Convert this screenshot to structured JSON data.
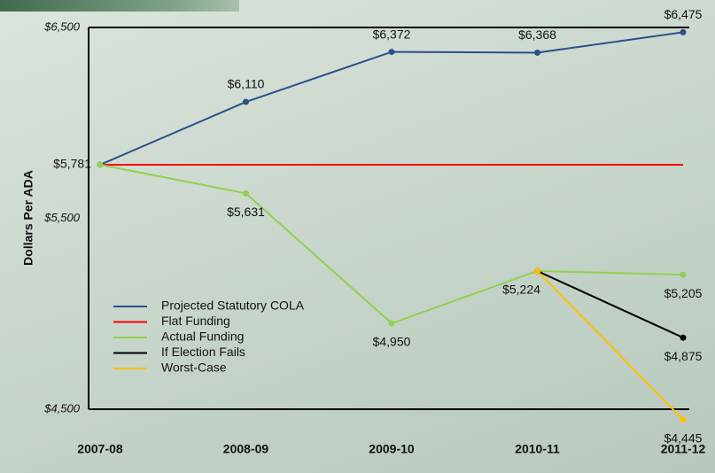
{
  "chart_data": {
    "type": "line",
    "y_label": "Dollars Per ADA",
    "categories": [
      "2007-08",
      "2008-09",
      "2009-10",
      "2010-11",
      "2011-12"
    ],
    "ylim": [
      4500,
      6500
    ],
    "yticks": [
      {
        "value": 4500,
        "label": "$4,500"
      },
      {
        "value": 5500,
        "label": "$5,500"
      },
      {
        "value": 6500,
        "label": "$6,500"
      }
    ],
    "grid": false,
    "legend": "lower left",
    "series": [
      {
        "name": "Projected Statutory COLA",
        "color": "#2b4f8c",
        "values": [
          5781,
          6110,
          6372,
          6368,
          6475
        ],
        "value_labels": [
          null,
          "$6,110",
          "$6,372",
          "$6,368",
          "$6,475"
        ]
      },
      {
        "name": "Flat Funding",
        "color": "#ff0000",
        "marker": false,
        "values": [
          5781,
          5781,
          5781,
          5781,
          5781
        ],
        "value_labels": [
          "$5,781",
          null,
          null,
          null,
          null
        ]
      },
      {
        "name": "Actual Funding",
        "color": "#92d050",
        "values": [
          5781,
          5631,
          4950,
          5224,
          5205
        ],
        "value_labels": [
          null,
          "$5,631",
          "$4,950",
          "$5,224",
          "$5,205"
        ]
      },
      {
        "name": "If Election Fails",
        "color": "#000000",
        "values": [
          null,
          null,
          null,
          5224,
          4875
        ],
        "value_labels": [
          null,
          null,
          null,
          null,
          "$4,875"
        ]
      },
      {
        "name": "Worst-Case",
        "color": "#ffc000",
        "values": [
          null,
          null,
          null,
          5224,
          4445
        ],
        "value_labels": [
          null,
          null,
          null,
          null,
          "$4,445"
        ]
      }
    ]
  }
}
